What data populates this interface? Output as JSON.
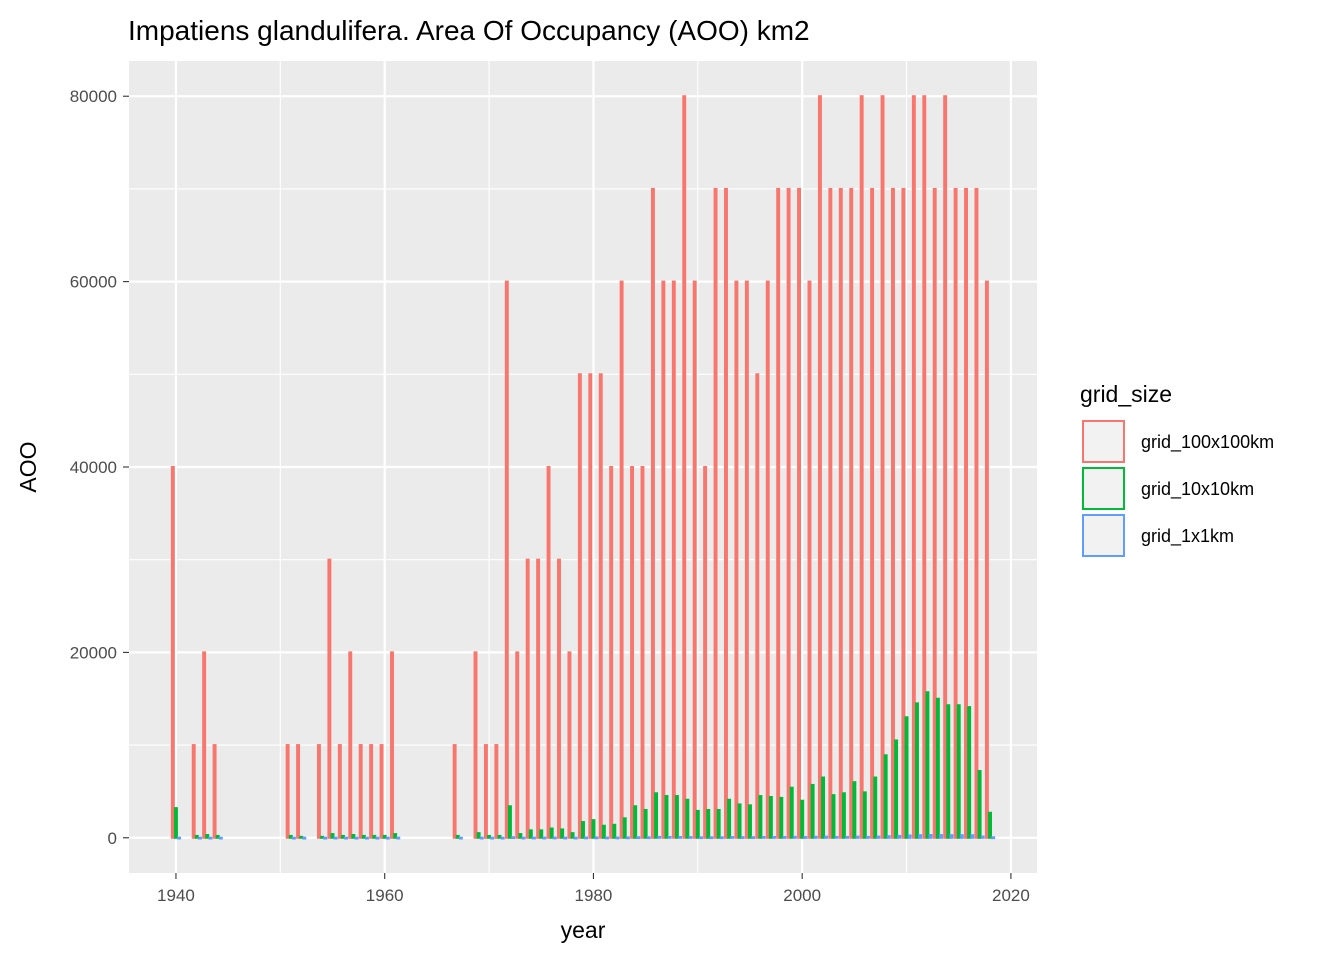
{
  "chart_data": {
    "type": "bar",
    "title": "Impatiens glandulifera. Area Of Occupancy (AOO) km2",
    "xlabel": "year",
    "ylabel": "AOO",
    "xlim": [
      1935.5,
      2022.5
    ],
    "ylim": [
      -3800,
      83800
    ],
    "x_ticks": [
      1940,
      1960,
      1980,
      2000,
      2020
    ],
    "y_ticks": [
      0,
      20000,
      40000,
      60000,
      80000
    ],
    "grid": true,
    "legend": {
      "title": "grid_size",
      "position": "right"
    },
    "series": [
      {
        "name": "grid_100x100km",
        "color": "#F8766D",
        "points": [
          [
            1940,
            40000
          ],
          [
            1942,
            10000
          ],
          [
            1943,
            20000
          ],
          [
            1944,
            10000
          ],
          [
            1951,
            10000
          ],
          [
            1952,
            10000
          ],
          [
            1954,
            10000
          ],
          [
            1955,
            30000
          ],
          [
            1956,
            10000
          ],
          [
            1957,
            20000
          ],
          [
            1958,
            10000
          ],
          [
            1959,
            10000
          ],
          [
            1960,
            10000
          ],
          [
            1961,
            20000
          ],
          [
            1967,
            10000
          ],
          [
            1969,
            20000
          ],
          [
            1970,
            10000
          ],
          [
            1971,
            10000
          ],
          [
            1972,
            60000
          ],
          [
            1973,
            20000
          ],
          [
            1974,
            30000
          ],
          [
            1975,
            30000
          ],
          [
            1976,
            40000
          ],
          [
            1977,
            30000
          ],
          [
            1978,
            20000
          ],
          [
            1979,
            50000
          ],
          [
            1980,
            50000
          ],
          [
            1981,
            50000
          ],
          [
            1982,
            40000
          ],
          [
            1983,
            60000
          ],
          [
            1984,
            40000
          ],
          [
            1985,
            40000
          ],
          [
            1986,
            70000
          ],
          [
            1987,
            60000
          ],
          [
            1988,
            60000
          ],
          [
            1989,
            80000
          ],
          [
            1990,
            60000
          ],
          [
            1991,
            40000
          ],
          [
            1992,
            70000
          ],
          [
            1993,
            70000
          ],
          [
            1994,
            60000
          ],
          [
            1995,
            60000
          ],
          [
            1996,
            50000
          ],
          [
            1997,
            60000
          ],
          [
            1998,
            70000
          ],
          [
            1999,
            70000
          ],
          [
            2000,
            70000
          ],
          [
            2001,
            60000
          ],
          [
            2002,
            80000
          ],
          [
            2003,
            70000
          ],
          [
            2004,
            70000
          ],
          [
            2005,
            70000
          ],
          [
            2006,
            80000
          ],
          [
            2007,
            70000
          ],
          [
            2008,
            80000
          ],
          [
            2009,
            70000
          ],
          [
            2010,
            70000
          ],
          [
            2011,
            80000
          ],
          [
            2012,
            80000
          ],
          [
            2013,
            70000
          ],
          [
            2014,
            80000
          ],
          [
            2015,
            70000
          ],
          [
            2016,
            70000
          ],
          [
            2017,
            70000
          ],
          [
            2018,
            60000
          ]
        ]
      },
      {
        "name": "grid_10x10km",
        "color": "#00BA38",
        "points": [
          [
            1940,
            3200
          ],
          [
            1942,
            200
          ],
          [
            1943,
            300
          ],
          [
            1944,
            200
          ],
          [
            1951,
            200
          ],
          [
            1952,
            100
          ],
          [
            1954,
            100
          ],
          [
            1955,
            400
          ],
          [
            1956,
            200
          ],
          [
            1957,
            300
          ],
          [
            1958,
            200
          ],
          [
            1959,
            200
          ],
          [
            1960,
            200
          ],
          [
            1961,
            400
          ],
          [
            1967,
            200
          ],
          [
            1969,
            500
          ],
          [
            1970,
            200
          ],
          [
            1971,
            200
          ],
          [
            1972,
            3400
          ],
          [
            1973,
            400
          ],
          [
            1974,
            800
          ],
          [
            1975,
            800
          ],
          [
            1976,
            1000
          ],
          [
            1977,
            900
          ],
          [
            1978,
            500
          ],
          [
            1979,
            1700
          ],
          [
            1980,
            1900
          ],
          [
            1981,
            1300
          ],
          [
            1982,
            1400
          ],
          [
            1983,
            2100
          ],
          [
            1984,
            3400
          ],
          [
            1985,
            3000
          ],
          [
            1986,
            4800
          ],
          [
            1987,
            4500
          ],
          [
            1988,
            4500
          ],
          [
            1989,
            4100
          ],
          [
            1990,
            2900
          ],
          [
            1991,
            3000
          ],
          [
            1992,
            3000
          ],
          [
            1993,
            4100
          ],
          [
            1994,
            3600
          ],
          [
            1995,
            3500
          ],
          [
            1996,
            4500
          ],
          [
            1997,
            4400
          ],
          [
            1998,
            4300
          ],
          [
            1999,
            5400
          ],
          [
            2000,
            4000
          ],
          [
            2001,
            5700
          ],
          [
            2002,
            6500
          ],
          [
            2003,
            4600
          ],
          [
            2004,
            4800
          ],
          [
            2005,
            6000
          ],
          [
            2006,
            4900
          ],
          [
            2007,
            6500
          ],
          [
            2008,
            8900
          ],
          [
            2009,
            10500
          ],
          [
            2010,
            13000
          ],
          [
            2011,
            14500
          ],
          [
            2012,
            15700
          ],
          [
            2013,
            15000
          ],
          [
            2014,
            14300
          ],
          [
            2015,
            14300
          ],
          [
            2016,
            14100
          ],
          [
            2017,
            7200
          ],
          [
            2018,
            2700
          ]
        ]
      },
      {
        "name": "grid_1x1km",
        "color": "#619CFF",
        "points": [
          [
            1940,
            10
          ],
          [
            1942,
            5
          ],
          [
            1943,
            5
          ],
          [
            1944,
            5
          ],
          [
            1951,
            5
          ],
          [
            1952,
            5
          ],
          [
            1954,
            5
          ],
          [
            1955,
            10
          ],
          [
            1956,
            5
          ],
          [
            1957,
            5
          ],
          [
            1958,
            5
          ],
          [
            1959,
            5
          ],
          [
            1960,
            5
          ],
          [
            1961,
            10
          ],
          [
            1967,
            5
          ],
          [
            1969,
            10
          ],
          [
            1970,
            5
          ],
          [
            1971,
            5
          ],
          [
            1972,
            60
          ],
          [
            1973,
            10
          ],
          [
            1974,
            15
          ],
          [
            1975,
            15
          ],
          [
            1976,
            20
          ],
          [
            1977,
            15
          ],
          [
            1978,
            10
          ],
          [
            1979,
            30
          ],
          [
            1980,
            35
          ],
          [
            1981,
            25
          ],
          [
            1982,
            25
          ],
          [
            1983,
            40
          ],
          [
            1984,
            60
          ],
          [
            1985,
            55
          ],
          [
            1986,
            90
          ],
          [
            1987,
            85
          ],
          [
            1988,
            85
          ],
          [
            1989,
            80
          ],
          [
            1990,
            55
          ],
          [
            1991,
            55
          ],
          [
            1992,
            55
          ],
          [
            1993,
            80
          ],
          [
            1994,
            70
          ],
          [
            1995,
            65
          ],
          [
            1996,
            85
          ],
          [
            1997,
            85
          ],
          [
            1998,
            80
          ],
          [
            1999,
            100
          ],
          [
            2000,
            75
          ],
          [
            2001,
            110
          ],
          [
            2002,
            125
          ],
          [
            2003,
            90
          ],
          [
            2004,
            90
          ],
          [
            2005,
            115
          ],
          [
            2006,
            95
          ],
          [
            2007,
            125
          ],
          [
            2008,
            170
          ],
          [
            2009,
            200
          ],
          [
            2010,
            250
          ],
          [
            2011,
            280
          ],
          [
            2012,
            300
          ],
          [
            2013,
            290
          ],
          [
            2014,
            275
          ],
          [
            2015,
            275
          ],
          [
            2016,
            270
          ],
          [
            2017,
            140
          ],
          [
            2018,
            50
          ]
        ]
      }
    ]
  }
}
